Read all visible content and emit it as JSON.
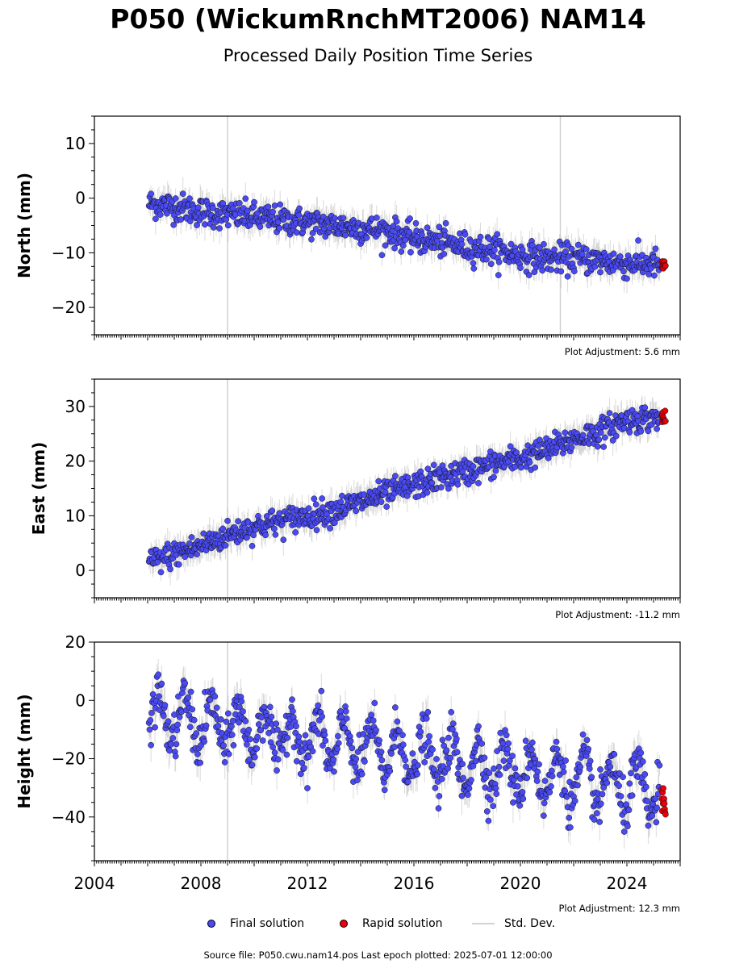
{
  "title": "P050 (WickumRnchMT2006) NAM14",
  "subtitle": "Processed Daily Position Time Series",
  "legend": {
    "final": "Final solution",
    "rapid": "Rapid solution",
    "std": "Std. Dev."
  },
  "source": "Source file: P050.cwu.nam14.pos  Last epoch plotted: 2025-07-01 12:00:00",
  "colors": {
    "final": "#4a4af5",
    "rapid": "#e8000b",
    "std": "#c8c8c8",
    "equipment_line": "#d0d0d0"
  },
  "chart_data": [
    {
      "type": "scatter",
      "ylabel": "North (mm)",
      "adjustment": "Plot Adjustment: 5.6 mm",
      "xlim": [
        2004,
        2026
      ],
      "ylim": [
        -25,
        15
      ],
      "yticks": [
        -20,
        -10,
        0,
        10
      ],
      "equipment_change": [
        2009.0,
        2021.5
      ],
      "series": [
        {
          "name": "Final solution",
          "x": [
            2006.1,
            2007.0,
            2008.0,
            2009.0,
            2010.0,
            2011.0,
            2012.0,
            2013.0,
            2014.0,
            2015.0,
            2016.0,
            2017.0,
            2018.0,
            2019.0,
            2020.0,
            2021.0,
            2022.0,
            2023.0,
            2024.0,
            2025.2
          ],
          "y": [
            -1.0,
            -1.5,
            -2.5,
            -3.0,
            -3.5,
            -4.0,
            -4.5,
            -5.0,
            -5.5,
            -6.0,
            -7.5,
            -8.0,
            -9.0,
            -9.5,
            -10.5,
            -11.0,
            -11.0,
            -11.5,
            -12.0,
            -12.0
          ]
        },
        {
          "name": "Rapid solution",
          "x": [
            2025.3,
            2025.45
          ],
          "y": [
            -12.0,
            -12.5
          ]
        }
      ]
    },
    {
      "type": "scatter",
      "ylabel": "East (mm)",
      "adjustment": "Plot Adjustment: -11.2 mm",
      "xlim": [
        2004,
        2026
      ],
      "ylim": [
        -5,
        35
      ],
      "yticks": [
        0,
        10,
        20,
        30
      ],
      "equipment_change": [
        2009.0
      ],
      "series": [
        {
          "name": "Final solution",
          "x": [
            2006.1,
            2007.0,
            2008.0,
            2009.0,
            2010.0,
            2011.0,
            2012.0,
            2013.0,
            2014.0,
            2015.0,
            2016.0,
            2017.0,
            2018.0,
            2019.0,
            2020.0,
            2021.0,
            2022.0,
            2023.0,
            2024.0,
            2025.2
          ],
          "y": [
            1.5,
            3.0,
            4.5,
            6.5,
            8.0,
            9.0,
            10.0,
            11.0,
            12.5,
            14.0,
            15.5,
            17.0,
            18.0,
            19.5,
            20.5,
            22.0,
            24.0,
            25.5,
            27.5,
            28.0
          ]
        },
        {
          "name": "Rapid solution",
          "x": [
            2025.3,
            2025.45
          ],
          "y": [
            28.0,
            27.5
          ]
        }
      ]
    },
    {
      "type": "scatter",
      "ylabel": "Height (mm)",
      "adjustment": "Plot Adjustment: 12.3 mm",
      "xlim": [
        2004,
        2026
      ],
      "ylim": [
        -55,
        20
      ],
      "yticks": [
        -40,
        -20,
        0,
        20
      ],
      "xticks": [
        2004,
        2008,
        2012,
        2016,
        2020,
        2024
      ],
      "equipment_change": [
        2009.0
      ],
      "trend": [
        [
          2006.0,
          -5
        ],
        [
          2025.4,
          -32
        ]
      ],
      "seasonal_amplitude_mm": 8,
      "series": [
        {
          "name": "Final solution",
          "x": [
            2006.1,
            2025.2
          ],
          "y": [
            -5,
            -32
          ]
        },
        {
          "name": "Rapid solution",
          "x": [
            2025.3,
            2025.45
          ],
          "y": [
            -33,
            -36
          ]
        }
      ]
    }
  ]
}
